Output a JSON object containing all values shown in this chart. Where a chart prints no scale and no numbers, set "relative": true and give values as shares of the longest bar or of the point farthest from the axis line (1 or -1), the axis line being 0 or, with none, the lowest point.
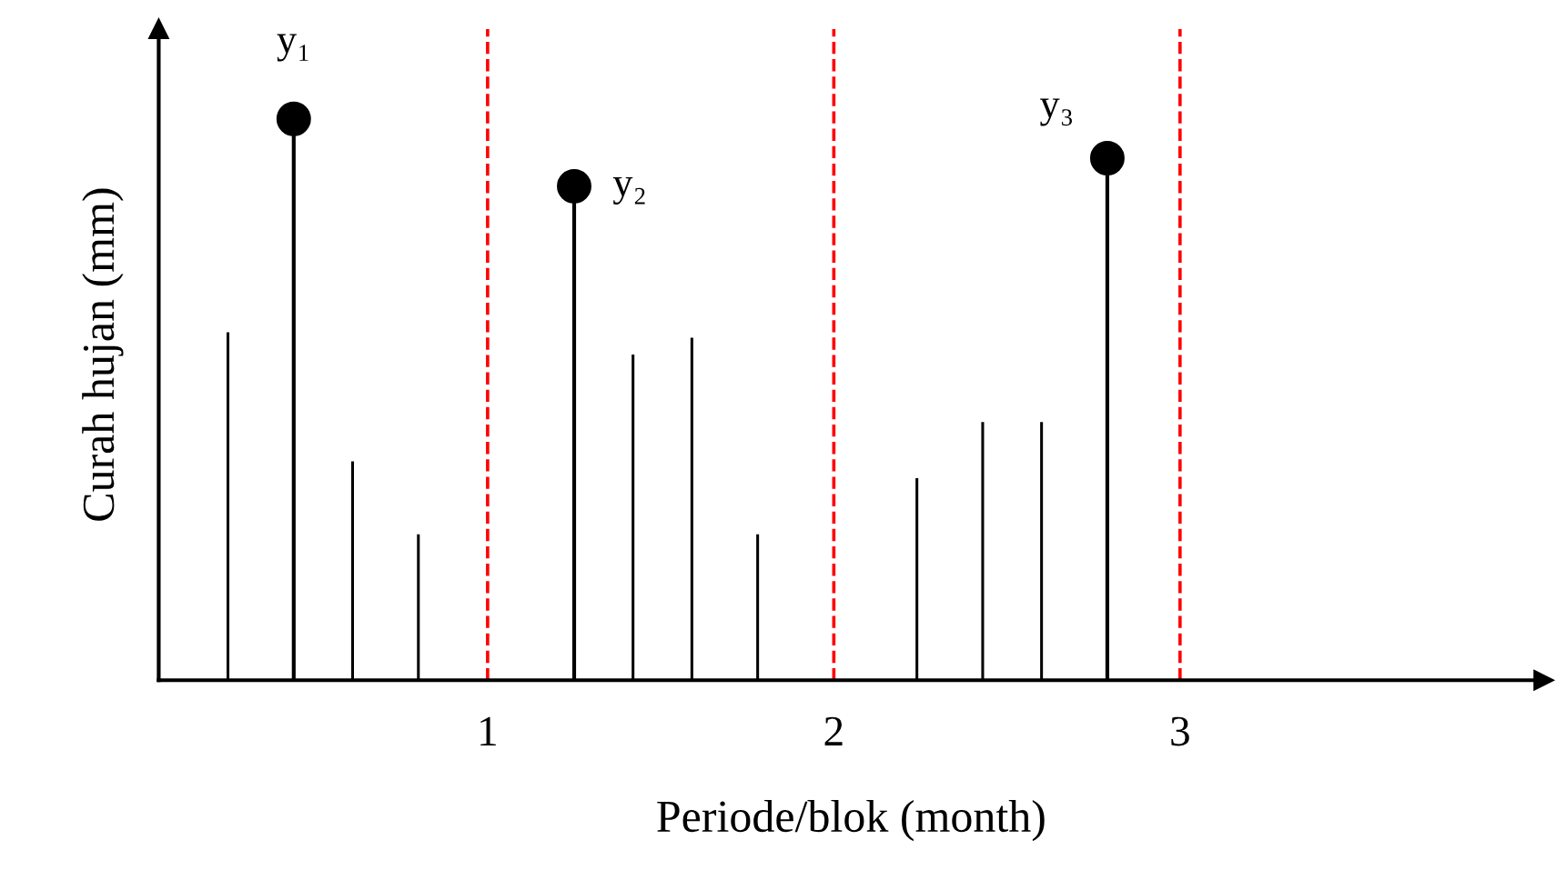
{
  "chart_data": {
    "type": "lollipop",
    "relative": true,
    "xlabel": "Periode/blok (month)",
    "ylabel": "Curah hujan (mm)",
    "xlim": [
      0.05,
      4.05
    ],
    "xticks": [
      1,
      2,
      3
    ],
    "tick_labels": "x",
    "grid": false,
    "legend": false,
    "series": [
      {
        "type": "bar",
        "color": "#000000",
        "x": [
          0.25,
          0.61,
          0.8,
          1.42,
          1.59,
          1.78,
          2.24,
          2.43,
          2.6
        ],
        "values": [
          0.62,
          0.39,
          0.26,
          0.58,
          0.61,
          0.26,
          0.36,
          0.46,
          0.46
        ]
      },
      {
        "marker": "circle",
        "color": "#000000",
        "x": [
          0.44,
          1.25,
          2.79
        ],
        "values": [
          1,
          0.88,
          0.93
        ]
      }
    ],
    "annotations": [
      {
        "text": "y₁",
        "x": 0.44,
        "y": 1
      },
      {
        "text": "y₂",
        "x": 1.25,
        "y": 0.88
      },
      {
        "text": "y₃",
        "x": 2.79,
        "y": 0.93
      }
    ],
    "ref_lines": [
      {
        "axis": "x",
        "value": 1,
        "color": "#ff0000",
        "line_style": "dashed"
      },
      {
        "axis": "x",
        "value": 2,
        "color": "#ff0000",
        "line_style": "dashed"
      },
      {
        "axis": "x",
        "value": 3,
        "color": "#ff0000",
        "line_style": "dashed"
      }
    ]
  }
}
